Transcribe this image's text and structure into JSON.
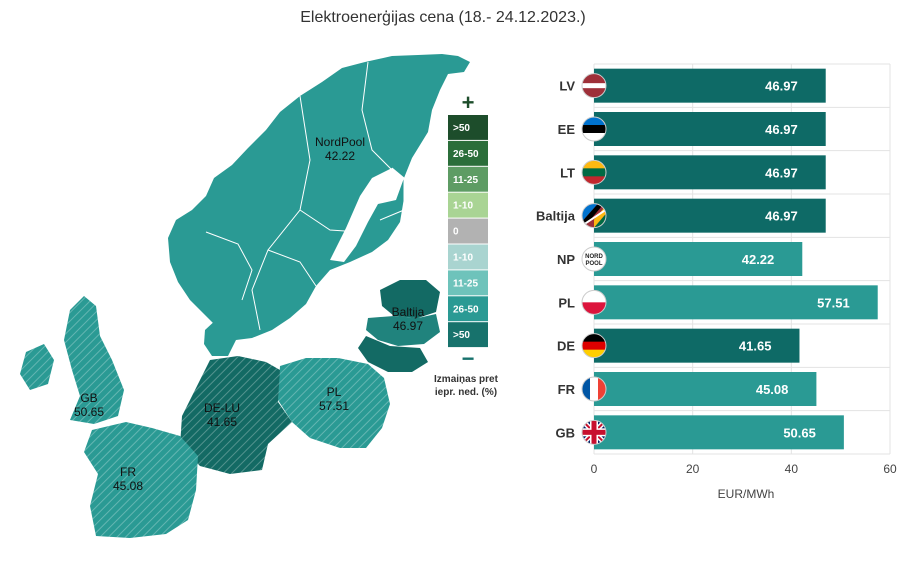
{
  "title": "Elektroenerģijas cena (18.- 24.12.2023.)",
  "colors": {
    "dark": "#0e6a66",
    "light": "#2a9a94",
    "map_base": "#2a9a94",
    "map_dark": "#136a64",
    "map_mid": "#20837d",
    "grid": "#e3e3e3"
  },
  "map": {
    "regions": [
      {
        "label": "NordPool",
        "value": "42.22"
      },
      {
        "label": "Baltija",
        "value": "46.97"
      },
      {
        "label": "GB",
        "value": "50.65"
      },
      {
        "label": "DE-LU",
        "value": "41.65"
      },
      {
        "label": "PL",
        "value": "57.51"
      },
      {
        "label": "FR",
        "value": "45.08"
      }
    ]
  },
  "legend": {
    "plus": "+",
    "minus": "−",
    "caption_line1": "Izmaiņas pret",
    "caption_line2": "iepr. ned. (%)",
    "items": [
      {
        "label": ">50",
        "color": "#1d4d2b"
      },
      {
        "label": "26-50",
        "color": "#2b6e3a"
      },
      {
        "label": "11-25",
        "color": "#5e9c64"
      },
      {
        "label": "1-10",
        "color": "#a9d494"
      },
      {
        "label": "0",
        "color": "#b2b2b2"
      },
      {
        "label": "1-10",
        "color": "#a9d4d0"
      },
      {
        "label": "11-25",
        "color": "#6ec3bb"
      },
      {
        "label": "26-50",
        "color": "#2a9a94"
      },
      {
        "label": ">50",
        "color": "#17726c"
      }
    ]
  },
  "chart_data": {
    "type": "bar",
    "orientation": "horizontal",
    "categories": [
      "LV",
      "EE",
      "LT",
      "Baltija",
      "NP",
      "PL",
      "DE",
      "FR",
      "GB"
    ],
    "values": [
      46.97,
      46.97,
      46.97,
      46.97,
      42.22,
      57.51,
      41.65,
      45.08,
      50.65
    ],
    "value_labels": [
      "46.97",
      "46.97",
      "46.97",
      "46.97",
      "42.22",
      "57.51",
      "41.65",
      "45.08",
      "50.65"
    ],
    "bar_shades": [
      "dark",
      "dark",
      "dark",
      "dark",
      "light",
      "light",
      "dark",
      "light",
      "light"
    ],
    "flags": [
      "flag-latvia",
      "flag-estonia",
      "flag-lithuania",
      "flag-baltics",
      "nordpool-logo",
      "flag-poland",
      "flag-germany",
      "flag-france",
      "flag-uk"
    ],
    "nordpool_logo_text": [
      "NORD",
      "POOL"
    ],
    "xlabel": "EUR/MWh",
    "xlim": [
      0,
      60
    ],
    "xticks": [
      0,
      20,
      40,
      60
    ],
    "grid": true
  }
}
